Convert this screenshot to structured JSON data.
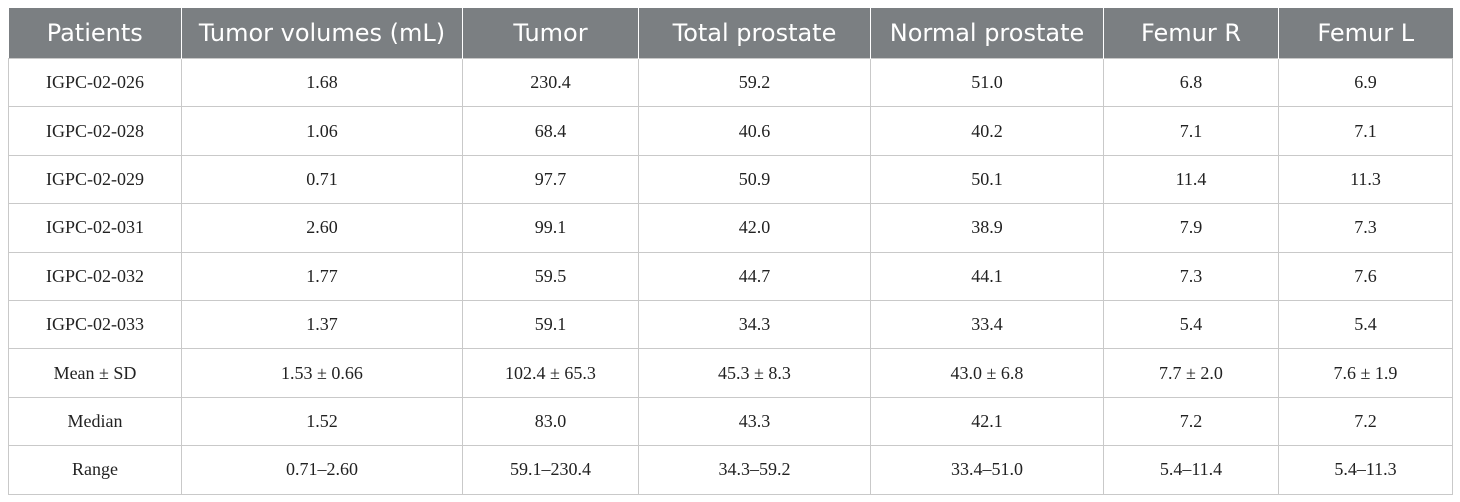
{
  "table": {
    "headers": [
      "Patients",
      "Tumor volumes (mL)",
      "Tumor",
      "Total prostate",
      "Normal prostate",
      "Femur R",
      "Femur L"
    ],
    "rows": [
      [
        "IGPC-02-026",
        "1.68",
        "230.4",
        "59.2",
        "51.0",
        "6.8",
        "6.9"
      ],
      [
        "IGPC-02-028",
        "1.06",
        "68.4",
        "40.6",
        "40.2",
        "7.1",
        "7.1"
      ],
      [
        "IGPC-02-029",
        "0.71",
        "97.7",
        "50.9",
        "50.1",
        "11.4",
        "11.3"
      ],
      [
        "IGPC-02-031",
        "2.60",
        "99.1",
        "42.0",
        "38.9",
        "7.9",
        "7.3"
      ],
      [
        "IGPC-02-032",
        "1.77",
        "59.5",
        "44.7",
        "44.1",
        "7.3",
        "7.6"
      ],
      [
        "IGPC-02-033",
        "1.37",
        "59.1",
        "34.3",
        "33.4",
        "5.4",
        "5.4"
      ],
      [
        "Mean ± SD",
        "1.53 ± 0.66",
        "102.4 ± 65.3",
        "45.3 ± 8.3",
        "43.0 ± 6.8",
        "7.7 ± 2.0",
        "7.6 ± 1.9"
      ],
      [
        "Median",
        "1.52",
        "83.0",
        "43.3",
        "42.1",
        "7.2",
        "7.2"
      ],
      [
        "Range",
        "0.71–2.60",
        "59.1–230.4",
        "34.3–59.2",
        "33.4–51.0",
        "5.4–11.4",
        "5.4–11.3"
      ]
    ]
  },
  "colors": {
    "header_bg": "#7b7f82",
    "header_text": "#ffffff",
    "grid": "#c9c9c9"
  }
}
